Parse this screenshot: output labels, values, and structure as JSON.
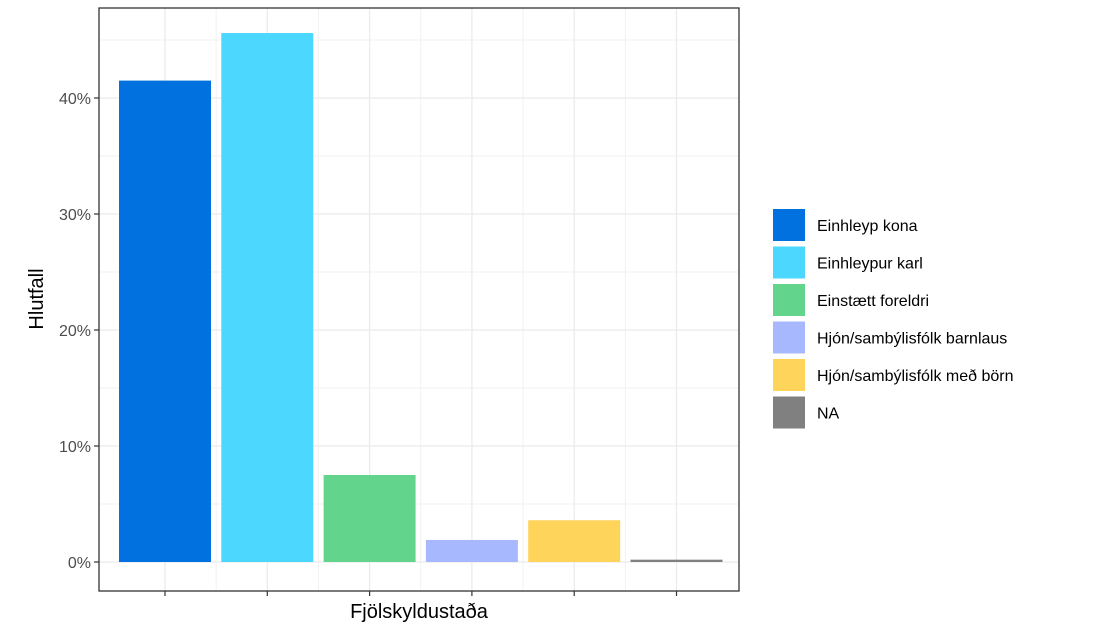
{
  "chart_data": {
    "type": "bar",
    "title": "",
    "xlabel": "Fjölskyldustaða",
    "ylabel": "Hlutfall",
    "ylim": [
      0,
      0.49
    ],
    "yticks": [
      0,
      0.1,
      0.2,
      0.3,
      0.4
    ],
    "ytick_labels": [
      "0%",
      "10%",
      "20%",
      "30%",
      "40%"
    ],
    "categories": [
      "Einhleyp kona",
      "Einhleypur karl",
      "Einstætt foreldri",
      "Hjón/sambýlisfólk barnlaus",
      "Hjón/sambýlisfólk með börn",
      "NA"
    ],
    "values": [
      0.415,
      0.456,
      0.075,
      0.019,
      0.036,
      0.002
    ],
    "colors": [
      "#0071DE",
      "#4CD7FF",
      "#63D48C",
      "#A8B8FF",
      "#FFD45A",
      "#808080"
    ],
    "xtick_labels_visible": false,
    "grid": true,
    "legend": {
      "position": "right",
      "entries": [
        "Einhleyp kona",
        "Einhleypur karl",
        "Einstætt foreldri",
        "Hjón/sambýlisfólk barnlaus",
        "Hjón/sambýlisfólk með börn",
        "NA"
      ]
    }
  }
}
